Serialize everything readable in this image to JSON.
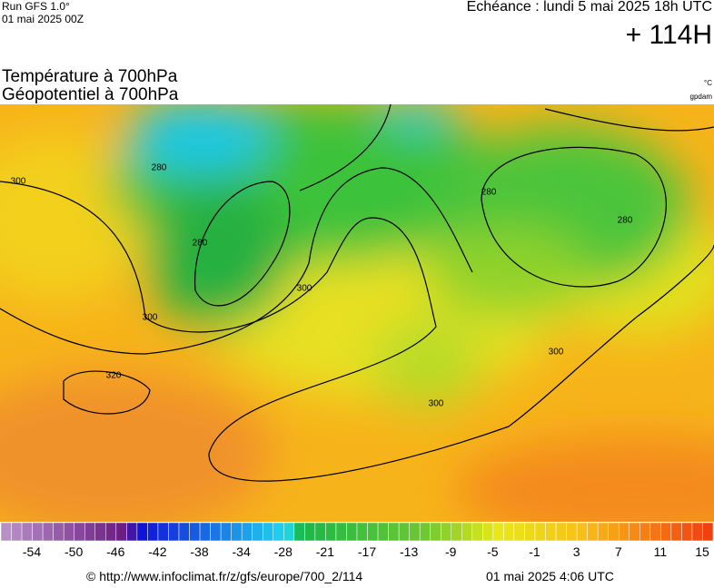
{
  "header": {
    "run": "Run GFS 1.0°",
    "run_date": "01 mai 2025 00Z",
    "valid": "Echéance : lundi 5 mai 2025 18h UTC",
    "lead": "+ 114H",
    "title_1": "Température à 700hPa",
    "title_2": "Géopotentiel à 700hPa",
    "unit_1": "°C",
    "unit_2": "gpdam"
  },
  "map": {
    "contour_labels": [
      "300",
      "280",
      "280",
      "280",
      "280",
      "300",
      "300",
      "300",
      "300",
      "320"
    ]
  },
  "colorbar": {
    "labels": [
      -54,
      -50,
      -46,
      -42,
      -38,
      -34,
      -28,
      -21,
      -17,
      -13,
      -9,
      -5,
      -1,
      3,
      7,
      11,
      15
    ]
  },
  "footer": {
    "source": "© http://www.infoclimat.fr/z/gfs/europe/700_2/114",
    "date": "01 mai 2025  4:06 UTC"
  }
}
